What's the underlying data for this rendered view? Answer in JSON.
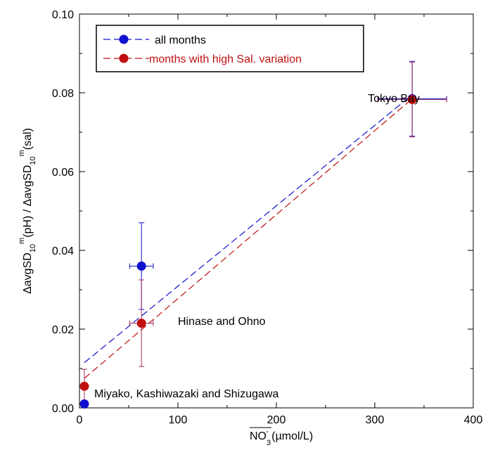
{
  "chart_data": {
    "type": "scatter",
    "xlim": [
      0,
      400
    ],
    "ylim": [
      0,
      0.1
    ],
    "x_ticks": [
      0,
      100,
      200,
      300,
      400
    ],
    "y_ticks": [
      0.0,
      0.02,
      0.04,
      0.06,
      0.08,
      0.1
    ],
    "y_tick_labels": [
      "0.00",
      "0.02",
      "0.04",
      "0.06",
      "0.08",
      "0.10"
    ],
    "x_tick_labels": [
      "0",
      "100",
      "200",
      "300",
      "400"
    ],
    "xlabel": {
      "overline_text": "NO",
      "subscript": "3",
      "subscript_charge": "-",
      "unit": " (µmol/L)"
    },
    "ylabel": {
      "part1": "ΔavgSD",
      "sub1": "10",
      "sup1": "m",
      "part2": "(pH) / ΔavgSD",
      "sub2": "10",
      "sup2": "m",
      "part3": "(sal)"
    },
    "legend_position": "top-left",
    "series": [
      {
        "name": "all months",
        "color": "#1010d0",
        "points": [
          {
            "x": 5,
            "y": 0.001,
            "xerr": 0,
            "yerr": 0
          },
          {
            "x": 63,
            "y": 0.036,
            "xerr": 12,
            "yerr": 0.011
          },
          {
            "x": 338,
            "y": 0.0785,
            "xerr": 35,
            "yerr": 0.0095
          }
        ],
        "fit": {
          "x0": 5,
          "y0": 0.0115,
          "x1": 338,
          "y1": 0.0795
        }
      },
      {
        "name": "months with high Sal. variation",
        "color": "#c01010",
        "points": [
          {
            "x": 5,
            "y": 0.0055,
            "xerr": 0,
            "yerr": 0.0043
          },
          {
            "x": 63,
            "y": 0.0215,
            "xerr": 12,
            "yerr": 0.011
          },
          {
            "x": 338,
            "y": 0.0783,
            "xerr": 35,
            "yerr": 0.0095
          }
        ],
        "fit": {
          "x0": 5,
          "y0": 0.0075,
          "x1": 338,
          "y1": 0.0785
        }
      }
    ],
    "annotations": [
      {
        "text": "Tokyo Bay",
        "x": 293,
        "y": 0.0777
      },
      {
        "text": "Hinase and Ohno",
        "x": 100,
        "y": 0.0211
      },
      {
        "text": "Miyako, Kashiwazaki and Shizugawa",
        "x": 15,
        "y": 0.0027
      }
    ]
  }
}
